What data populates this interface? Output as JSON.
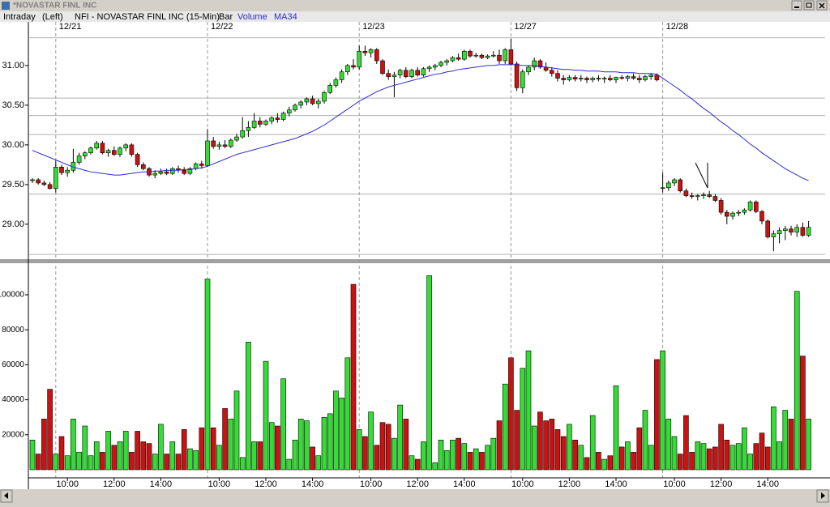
{
  "window": {
    "title": "*NOVASTAR FINL INC"
  },
  "chart_data": [
    {
      "type": "candlestick",
      "mode": "Intraday",
      "side": "(Left)",
      "symbol": "NFI - NOVASTAR FINL INC (15-Min)",
      "style": "Bar",
      "up_color": "#33dd33",
      "down_color": "#cc1111",
      "flat_color": "#1a1acc",
      "ylim": [
        28.58,
        31.54
      ],
      "yticks": [
        {
          "value": 31,
          "label": "31.00"
        },
        {
          "value": 30.5,
          "label": "30.50"
        },
        {
          "value": 30,
          "label": "30.00"
        },
        {
          "value": 29.5,
          "label": "29.50"
        },
        {
          "value": 29,
          "label": "29.00"
        }
      ],
      "hlines": [
        31.35,
        30.59,
        30.37,
        30.13,
        29.38,
        28.62
      ],
      "date_ticks": [
        {
          "value": 4,
          "label": "12/21"
        },
        {
          "value": 30,
          "label": "12/22"
        },
        {
          "value": 56,
          "label": "12/23"
        },
        {
          "value": 82,
          "label": "12/27"
        },
        {
          "value": 108,
          "label": "12/28"
        }
      ],
      "candles": [
        [
          29.55,
          29.58,
          29.52,
          29.56
        ],
        [
          29.56,
          29.58,
          29.5,
          29.52
        ],
        [
          29.52,
          29.55,
          29.48,
          29.5
        ],
        [
          29.5,
          29.53,
          29.44,
          29.45
        ],
        [
          29.45,
          29.8,
          29.4,
          29.72
        ],
        [
          29.72,
          29.75,
          29.62,
          29.65
        ],
        [
          29.65,
          29.72,
          29.6,
          29.68
        ],
        [
          29.68,
          29.95,
          29.65,
          29.78
        ],
        [
          29.78,
          29.9,
          29.75,
          29.86
        ],
        [
          29.86,
          29.92,
          29.82,
          29.9
        ],
        [
          29.9,
          29.98,
          29.88,
          29.96
        ],
        [
          29.96,
          30.05,
          29.94,
          30.02
        ],
        [
          30.02,
          30.05,
          29.88,
          29.9
        ],
        [
          29.9,
          29.95,
          29.85,
          29.93
        ],
        [
          29.93,
          29.98,
          29.86,
          29.88
        ],
        [
          29.88,
          29.98,
          29.85,
          29.96
        ],
        [
          29.96,
          30.02,
          29.92,
          30
        ],
        [
          30,
          30.02,
          29.85,
          29.88
        ],
        [
          29.88,
          29.9,
          29.72,
          29.75
        ],
        [
          29.75,
          29.78,
          29.68,
          29.7
        ],
        [
          29.7,
          29.72,
          29.6,
          29.62
        ],
        [
          29.62,
          29.68,
          29.58,
          29.64
        ],
        [
          29.64,
          29.7,
          29.62,
          29.66
        ],
        [
          29.66,
          29.7,
          29.62,
          29.64
        ],
        [
          29.64,
          29.72,
          29.62,
          29.7
        ],
        [
          29.7,
          29.74,
          29.65,
          29.68
        ],
        [
          29.68,
          29.72,
          29.62,
          29.64
        ],
        [
          29.64,
          29.72,
          29.62,
          29.7
        ],
        [
          29.7,
          29.78,
          29.68,
          29.76
        ],
        [
          29.76,
          29.8,
          29.7,
          29.74
        ],
        [
          29.74,
          30.2,
          29.72,
          30.05
        ],
        [
          30.05,
          30.1,
          29.95,
          29.98
        ],
        [
          29.98,
          30.04,
          29.94,
          30
        ],
        [
          30,
          30.06,
          29.96,
          29.98
        ],
        [
          29.98,
          30.08,
          29.96,
          30.06
        ],
        [
          30.06,
          30.14,
          30.04,
          30.1
        ],
        [
          30.1,
          30.35,
          30.08,
          30.18
        ],
        [
          30.18,
          30.3,
          30.1,
          30.22
        ],
        [
          30.22,
          30.4,
          30.2,
          30.3
        ],
        [
          30.3,
          30.35,
          30.22,
          30.26
        ],
        [
          30.26,
          30.32,
          30.24,
          30.3
        ],
        [
          30.3,
          30.36,
          30.26,
          30.34
        ],
        [
          30.34,
          30.4,
          30.28,
          30.32
        ],
        [
          30.32,
          30.42,
          30.3,
          30.4
        ],
        [
          30.4,
          30.48,
          30.36,
          30.44
        ],
        [
          30.44,
          30.52,
          30.42,
          30.5
        ],
        [
          30.5,
          30.56,
          30.46,
          30.54
        ],
        [
          30.54,
          30.6,
          30.5,
          30.58
        ],
        [
          30.58,
          30.62,
          30.5,
          30.52
        ],
        [
          30.52,
          30.58,
          30.46,
          30.55
        ],
        [
          30.55,
          30.68,
          30.52,
          30.66
        ],
        [
          30.66,
          30.78,
          30.64,
          30.75
        ],
        [
          30.75,
          30.85,
          30.72,
          30.82
        ],
        [
          30.82,
          30.95,
          30.78,
          30.92
        ],
        [
          30.92,
          31.02,
          30.88,
          31
        ],
        [
          31,
          31.08,
          30.95,
          30.98
        ],
        [
          30.98,
          31.25,
          30.95,
          31.18
        ],
        [
          31.18,
          31.25,
          31.12,
          31.16
        ],
        [
          31.16,
          31.22,
          31.1,
          31.2
        ],
        [
          31.2,
          31.22,
          31.02,
          31.06
        ],
        [
          31.06,
          31.08,
          30.88,
          30.9
        ],
        [
          30.9,
          30.95,
          30.82,
          30.86
        ],
        [
          30.86,
          30.92,
          30.6,
          30.88
        ],
        [
          30.88,
          30.96,
          30.84,
          30.94
        ],
        [
          30.94,
          30.98,
          30.84,
          30.86
        ],
        [
          30.86,
          30.96,
          30.84,
          30.94
        ],
        [
          30.94,
          30.98,
          30.86,
          30.88
        ],
        [
          30.88,
          30.98,
          30.86,
          30.96
        ],
        [
          30.96,
          31,
          30.92,
          30.98
        ],
        [
          30.98,
          31.02,
          30.94,
          31
        ],
        [
          31,
          31.06,
          30.98,
          31.04
        ],
        [
          31.04,
          31.08,
          31,
          31.06
        ],
        [
          31.06,
          31.12,
          31.04,
          31.1
        ],
        [
          31.1,
          31.15,
          31.06,
          31.08
        ],
        [
          31.08,
          31.2,
          31.06,
          31.18
        ],
        [
          31.18,
          31.2,
          31.1,
          31.12
        ],
        [
          31.12,
          31.16,
          31.1,
          31.13
        ],
        [
          31.13,
          31.15,
          31.08,
          31.1
        ],
        [
          31.1,
          31.14,
          31.08,
          31.12
        ],
        [
          31.12,
          31.18,
          31.1,
          31.13
        ],
        [
          31.13,
          31.2,
          31.02,
          31.06
        ],
        [
          31.06,
          31.22,
          31.02,
          31.2
        ],
        [
          31.2,
          31.34,
          31,
          31.02
        ],
        [
          31.02,
          31.05,
          30.68,
          30.72
        ],
        [
          30.72,
          30.95,
          30.65,
          30.92
        ],
        [
          30.92,
          31,
          30.88,
          30.98
        ],
        [
          30.98,
          31.1,
          30.94,
          31.06
        ],
        [
          31.06,
          31.08,
          30.96,
          30.98
        ],
        [
          30.98,
          31.04,
          30.92,
          30.94
        ],
        [
          30.94,
          30.98,
          30.86,
          30.9
        ],
        [
          30.9,
          30.94,
          30.8,
          30.84
        ],
        [
          30.84,
          30.88,
          30.76,
          30.82
        ],
        [
          30.82,
          30.88,
          30.8,
          30.85
        ],
        [
          30.85,
          30.88,
          30.8,
          30.83
        ],
        [
          30.83,
          30.88,
          30.8,
          30.84
        ],
        [
          30.84,
          30.86,
          30.78,
          30.82
        ],
        [
          30.82,
          30.86,
          30.79,
          30.84
        ],
        [
          30.84,
          30.88,
          30.8,
          30.83
        ],
        [
          30.83,
          30.86,
          30.78,
          30.84
        ],
        [
          30.84,
          30.88,
          30.8,
          30.82
        ],
        [
          30.82,
          30.86,
          30.78,
          30.85
        ],
        [
          30.85,
          30.88,
          30.82,
          30.84
        ],
        [
          30.84,
          30.88,
          30.8,
          30.86
        ],
        [
          30.86,
          30.9,
          30.82,
          30.84
        ],
        [
          30.84,
          30.88,
          30.78,
          30.82
        ],
        [
          30.82,
          30.88,
          30.8,
          30.86
        ],
        [
          30.86,
          30.9,
          30.82,
          30.88
        ],
        [
          30.88,
          30.9,
          30.8,
          30.82
        ],
        [
          29.45,
          29.65,
          29.4,
          29.46
        ],
        [
          29.46,
          29.55,
          29.42,
          29.52
        ],
        [
          29.52,
          29.58,
          29.48,
          29.56
        ],
        [
          29.56,
          29.58,
          29.4,
          29.42
        ],
        [
          29.42,
          29.45,
          29.34,
          29.36
        ],
        [
          29.36,
          29.4,
          29.32,
          29.35
        ],
        [
          29.35,
          29.38,
          29.3,
          29.36
        ],
        [
          29.36,
          29.4,
          29.32,
          29.37
        ],
        [
          29.37,
          29.42,
          29.33,
          29.35
        ],
        [
          29.35,
          29.38,
          29.28,
          29.3
        ],
        [
          29.3,
          29.33,
          29.12,
          29.15
        ],
        [
          29.15,
          29.18,
          29,
          29.1
        ],
        [
          29.1,
          29.16,
          29.06,
          29.14
        ],
        [
          29.14,
          29.18,
          29.1,
          29.15
        ],
        [
          29.15,
          29.2,
          29.12,
          29.18
        ],
        [
          29.18,
          29.3,
          29.16,
          29.28
        ],
        [
          29.28,
          29.3,
          29.14,
          29.16
        ],
        [
          29.16,
          29.18,
          29,
          29.04
        ],
        [
          29.04,
          29.06,
          28.82,
          28.84
        ],
        [
          28.84,
          28.92,
          28.66,
          28.88
        ],
        [
          28.88,
          28.96,
          28.76,
          28.92
        ],
        [
          28.92,
          28.98,
          28.8,
          28.94
        ],
        [
          28.94,
          28.98,
          28.86,
          28.9
        ],
        [
          28.9,
          29,
          28.84,
          28.96
        ],
        [
          28.96,
          29.02,
          28.84,
          28.86
        ],
        [
          28.86,
          29.04,
          28.84,
          28.96
        ]
      ],
      "ma": {
        "name": "MA34",
        "color": "#2b2bd0",
        "values": [
          29.93,
          29.9,
          29.87,
          29.84,
          29.81,
          29.78,
          29.75,
          29.72,
          29.7,
          29.68,
          29.66,
          29.65,
          29.64,
          29.63,
          29.62,
          29.62,
          29.63,
          29.64,
          29.65,
          29.66,
          29.66,
          29.67,
          29.67,
          29.68,
          29.68,
          29.68,
          29.69,
          29.69,
          29.7,
          29.71,
          29.73,
          29.76,
          29.79,
          29.82,
          29.85,
          29.88,
          29.9,
          29.92,
          29.94,
          29.96,
          29.98,
          30,
          30.02,
          30.04,
          30.06,
          30.08,
          30.11,
          30.14,
          30.17,
          30.21,
          30.25,
          30.3,
          30.35,
          30.4,
          30.45,
          30.5,
          30.55,
          30.59,
          30.63,
          30.67,
          30.7,
          30.73,
          30.75,
          30.77,
          30.79,
          30.81,
          30.83,
          30.85,
          30.87,
          30.89,
          30.9,
          30.92,
          30.93,
          30.95,
          30.96,
          30.97,
          30.98,
          30.99,
          31,
          31,
          31.01,
          31.01,
          31.01,
          31.01,
          31,
          31,
          31,
          30.99,
          30.98,
          30.97,
          30.96,
          30.95,
          30.95,
          30.94,
          30.94,
          30.93,
          30.93,
          30.93,
          30.92,
          30.92,
          30.92,
          30.91,
          30.91,
          30.91,
          30.9,
          30.9,
          30.9,
          30.89,
          30.84,
          30.79,
          30.74,
          30.69,
          30.63,
          30.58,
          30.52,
          30.46,
          30.41,
          30.35,
          30.29,
          30.24,
          30.18,
          30.13,
          30.07,
          30.01,
          29.96,
          29.9,
          29.85,
          29.8,
          29.75,
          29.7,
          29.66,
          29.62,
          29.58,
          29.55
        ]
      }
    },
    {
      "type": "bar",
      "name": "Volume",
      "color": "#2b2bd0",
      "ylim": [
        0,
        117600
      ],
      "yticks": [
        20000,
        40000,
        60000,
        80000,
        100000
      ],
      "xticks": [
        {
          "value": 6,
          "label": "10:00"
        },
        {
          "value": 14,
          "label": "12:00"
        },
        {
          "value": 22,
          "label": "14:00"
        },
        {
          "value": 32,
          "label": "10:00"
        },
        {
          "value": 40,
          "label": "12:00"
        },
        {
          "value": 48,
          "label": "14:00"
        },
        {
          "value": 58,
          "label": "10:00"
        },
        {
          "value": 66,
          "label": "12:00"
        },
        {
          "value": 74,
          "label": "14:00"
        },
        {
          "value": 84,
          "label": "10:00"
        },
        {
          "value": 92,
          "label": "12:00"
        },
        {
          "value": 100,
          "label": "14:00"
        },
        {
          "value": 110,
          "label": "10:00"
        },
        {
          "value": 118,
          "label": "12:00"
        },
        {
          "value": 126,
          "label": "14:00"
        }
      ],
      "values": [
        17000,
        9000,
        29000,
        46000,
        9000,
        19000,
        8000,
        29000,
        10000,
        25000,
        8000,
        16000,
        10000,
        22000,
        14000,
        16000,
        22000,
        10000,
        22000,
        16000,
        15000,
        9000,
        26000,
        9000,
        16000,
        9000,
        23000,
        12000,
        11000,
        24000,
        109000,
        24000,
        14000,
        35000,
        29000,
        45000,
        7000,
        73000,
        16000,
        16000,
        62000,
        27000,
        25000,
        52000,
        6000,
        17000,
        29000,
        28000,
        13000,
        8000,
        30000,
        32000,
        45000,
        41000,
        64000,
        106000,
        23000,
        19000,
        33000,
        14000,
        27000,
        26000,
        18000,
        37000,
        29000,
        8000,
        6000,
        16000,
        111000,
        4000,
        17000,
        11000,
        17000,
        18000,
        15000,
        10000,
        12000,
        10000,
        14000,
        18000,
        28000,
        49000,
        64000,
        34000,
        58000,
        68000,
        25000,
        33000,
        28000,
        29000,
        23000,
        19000,
        26000,
        17000,
        14000,
        7000,
        31000,
        10000,
        6000,
        8000,
        48000,
        13000,
        16000,
        10000,
        24000,
        34000,
        14000,
        63000,
        68000,
        29000,
        19000,
        9000,
        31000,
        10000,
        16000,
        15000,
        12000,
        13000,
        26000,
        17000,
        14000,
        15000,
        24000,
        9000,
        15000,
        21000,
        13000,
        36000,
        16000,
        34000,
        29000,
        102000,
        65000,
        29000
      ]
    }
  ]
}
